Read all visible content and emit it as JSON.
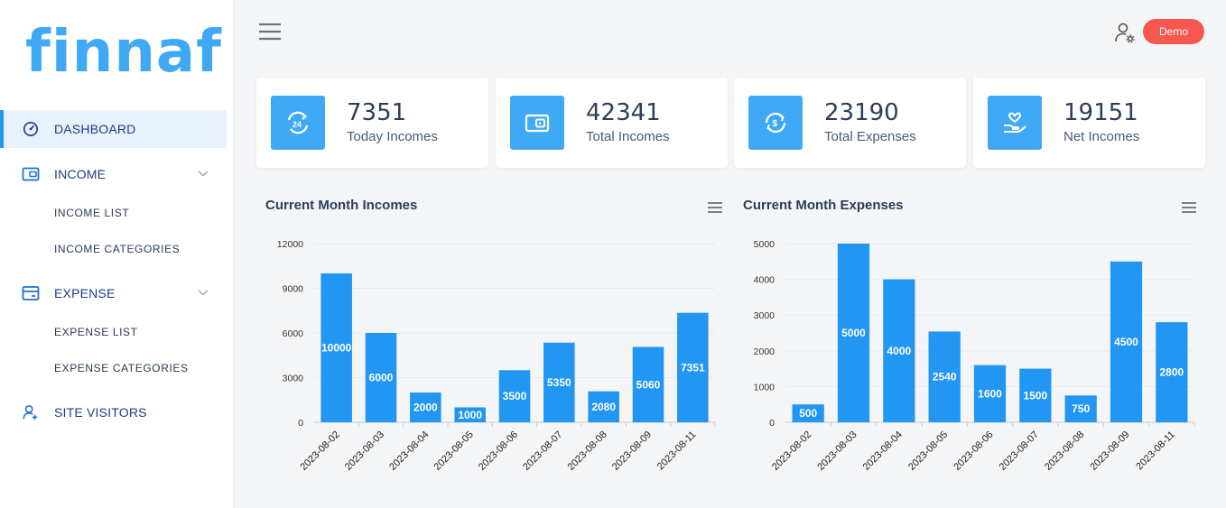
{
  "app": {
    "logo": "finnaf"
  },
  "sidebar": {
    "dashboard": "DASHBOARD",
    "income": "INCOME",
    "income_list": "INCOME LIST",
    "income_categories": "INCOME CATEGORIES",
    "expense": "EXPENSE",
    "expense_list": "EXPENSE LIST",
    "expense_categories": "EXPENSE CATEGORIES",
    "site_visitors": "SITE VISITORS"
  },
  "header": {
    "demo_label": "Demo"
  },
  "stats": [
    {
      "value": "7351",
      "label": "Today Incomes",
      "icon": "clock-24-icon"
    },
    {
      "value": "42341",
      "label": "Total Incomes",
      "icon": "wallet-icon"
    },
    {
      "value": "23190",
      "label": "Total Expenses",
      "icon": "money-cycle-icon"
    },
    {
      "value": "19151",
      "label": "Net Incomes",
      "icon": "hand-heart-icon"
    }
  ],
  "colors": {
    "accent": "#3fa9f5",
    "bar": "#2196f3",
    "demo": "#f5564e"
  },
  "chart_data": [
    {
      "type": "bar",
      "title": "Current Month Incomes",
      "categories": [
        "2023-08-02",
        "2023-08-03",
        "2023-08-04",
        "2023-08-05",
        "2023-08-06",
        "2023-08-07",
        "2023-08-08",
        "2023-08-09",
        "2023-08-11"
      ],
      "values": [
        10000,
        6000,
        2000,
        1000,
        3500,
        5350,
        2080,
        5060,
        7351
      ],
      "yticks": [
        0,
        3000,
        6000,
        9000,
        12000
      ],
      "ylim": [
        0,
        12000
      ],
      "xlabel": "",
      "ylabel": ""
    },
    {
      "type": "bar",
      "title": "Current Month Expenses",
      "categories": [
        "2023-08-02",
        "2023-08-03",
        "2023-08-04",
        "2023-08-05",
        "2023-08-06",
        "2023-08-07",
        "2023-08-08",
        "2023-08-09",
        "2023-08-11"
      ],
      "values": [
        500,
        5000,
        4000,
        2540,
        1600,
        1500,
        750,
        4500,
        2800
      ],
      "yticks": [
        0,
        1000,
        2000,
        3000,
        4000,
        5000
      ],
      "ylim": [
        0,
        5000
      ],
      "xlabel": "",
      "ylabel": ""
    }
  ]
}
